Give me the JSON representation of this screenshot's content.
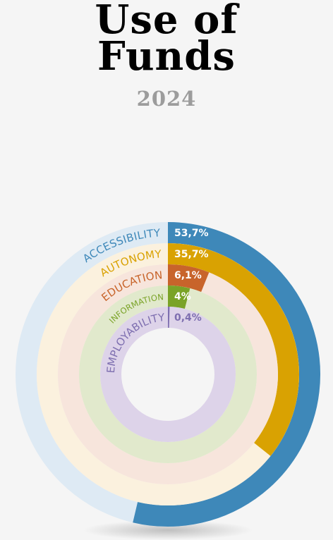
{
  "header": {
    "title_line1": "Use of",
    "title_line2": "Funds",
    "year": "2024"
  },
  "chart_data": {
    "type": "radial-bar",
    "title": "Use of Funds",
    "subtitle": "2024",
    "categories": [
      "ACCESSIBILITY",
      "AUTONOMY",
      "EDUCATION",
      "INFORMATION",
      "EMPLOYABILITY"
    ],
    "values": [
      53.7,
      35.7,
      6.1,
      4.0,
      0.4
    ],
    "value_labels": [
      "53,7%",
      "35,7%",
      "6,1%",
      "4%",
      "0,4%"
    ],
    "unit": "%",
    "colors": [
      "#3e88b9",
      "#d9a202",
      "#c8642b",
      "#7aa327",
      "#7e6fb0"
    ],
    "track_colors": [
      "#deeaf4",
      "#fbf1de",
      "#f7e5dc",
      "#e1e9cc",
      "#ddd3e9"
    ],
    "label_colors": [
      "#3e88b9",
      "#d9a202",
      "#c8642b",
      "#7aa327",
      "#7e6fb0"
    ]
  }
}
